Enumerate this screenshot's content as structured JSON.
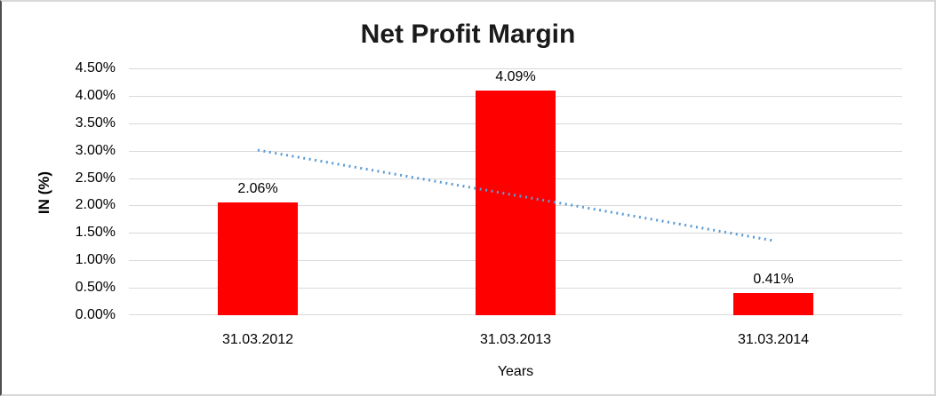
{
  "window": {
    "background": "#ffffff",
    "frame_color": "#d8d8d8",
    "frame_left_color": "#4d4d4d"
  },
  "chart_data": {
    "type": "bar",
    "title": "Net Profit Margin",
    "xlabel": "Years",
    "ylabel": "IN (%)",
    "categories": [
      "31.03.2012",
      "31.03.2013",
      "31.03.2014"
    ],
    "values": [
      2.06,
      4.09,
      0.41
    ],
    "data_labels": [
      "2.06%",
      "4.09%",
      "0.41%"
    ],
    "ylim": [
      0,
      4.5
    ],
    "y_ticks": [
      {
        "value": 4.5,
        "label": "4.50%"
      },
      {
        "value": 4.0,
        "label": "4.00%"
      },
      {
        "value": 3.5,
        "label": "3.50%"
      },
      {
        "value": 3.0,
        "label": "3.00%"
      },
      {
        "value": 2.5,
        "label": "2.50%"
      },
      {
        "value": 2.0,
        "label": "2.00%"
      },
      {
        "value": 1.5,
        "label": "1.50%"
      },
      {
        "value": 1.0,
        "label": "1.00%"
      },
      {
        "value": 0.5,
        "label": "0.50%"
      },
      {
        "value": 0.0,
        "label": "0.00%"
      }
    ],
    "grid": true,
    "legend": "none",
    "bar_color": "#ff0000",
    "gridline_color": "#d9d9d9",
    "trendline": {
      "type": "linear",
      "style": "dotted",
      "color": "#5b9bd5",
      "start_value": 3.01,
      "end_value": 1.36
    }
  }
}
